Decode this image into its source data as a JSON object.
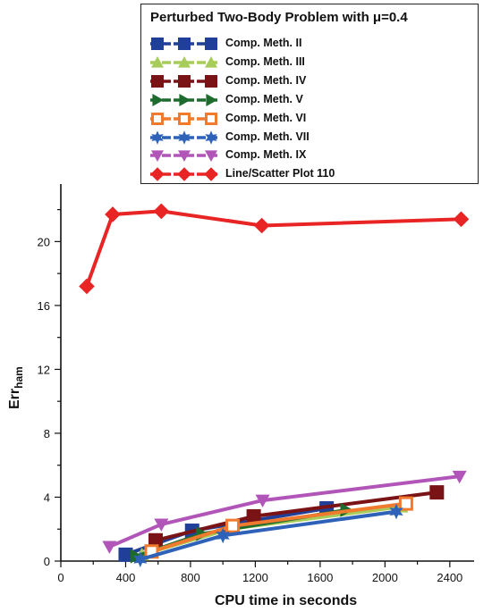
{
  "chart_data": {
    "type": "line",
    "title": "Perturbed Two-Body Problem with μ=0.4",
    "xlabel": "CPU time in seconds",
    "ylabel_main": "Err",
    "ylabel_sub": "ham",
    "xlim": [
      0,
      2550
    ],
    "ylim": [
      0,
      23.6
    ],
    "xticks": [
      0,
      400,
      800,
      1200,
      1600,
      2000,
      2400
    ],
    "yticks": [
      0,
      4,
      8,
      12,
      16,
      20
    ],
    "legend_position": "top-right",
    "series": [
      {
        "name": "Comp. Meth. II",
        "color": "#1f3f99",
        "marker": "square",
        "points": [
          [
            400,
            0.4
          ],
          [
            810,
            1.9
          ],
          [
            1640,
            3.3
          ]
        ]
      },
      {
        "name": "Comp. Meth. III",
        "color": "#a8cc5a",
        "marker": "triangle-up",
        "points": [
          [
            500,
            0.4
          ],
          [
            1040,
            2.0
          ],
          [
            2100,
            3.4
          ]
        ]
      },
      {
        "name": "Comp. Meth. IV",
        "color": "#7a1316",
        "marker": "square",
        "points": [
          [
            585,
            1.3
          ],
          [
            1190,
            2.8
          ],
          [
            2320,
            4.3
          ]
        ]
      },
      {
        "name": "Comp. Meth. V",
        "color": "#1d6b2e",
        "marker": "triangle-right",
        "points": [
          [
            465,
            0.3
          ],
          [
            870,
            1.7
          ],
          [
            1760,
            3.2
          ]
        ]
      },
      {
        "name": "Comp. Meth. VI",
        "color": "#f07a2e",
        "marker": "square-hollow",
        "points": [
          [
            560,
            0.6
          ],
          [
            1060,
            2.2
          ],
          [
            2130,
            3.6
          ]
        ]
      },
      {
        "name": "Comp. Meth. VII",
        "color": "#2e62b8",
        "marker": "star",
        "points": [
          [
            490,
            0.1
          ],
          [
            1000,
            1.6
          ],
          [
            2070,
            3.1
          ]
        ]
      },
      {
        "name": "Comp. Meth. IX",
        "color": "#b156b8",
        "marker": "triangle-down",
        "points": [
          [
            300,
            0.9
          ],
          [
            620,
            2.3
          ],
          [
            1245,
            3.8
          ],
          [
            2460,
            5.3
          ]
        ]
      },
      {
        "name": "Line/Scatter Plot 110",
        "color": "#e82424",
        "marker": "diamond",
        "points": [
          [
            160,
            17.2
          ],
          [
            320,
            21.7
          ],
          [
            620,
            21.9
          ],
          [
            1240,
            21.0
          ],
          [
            2470,
            21.4
          ]
        ]
      }
    ]
  }
}
